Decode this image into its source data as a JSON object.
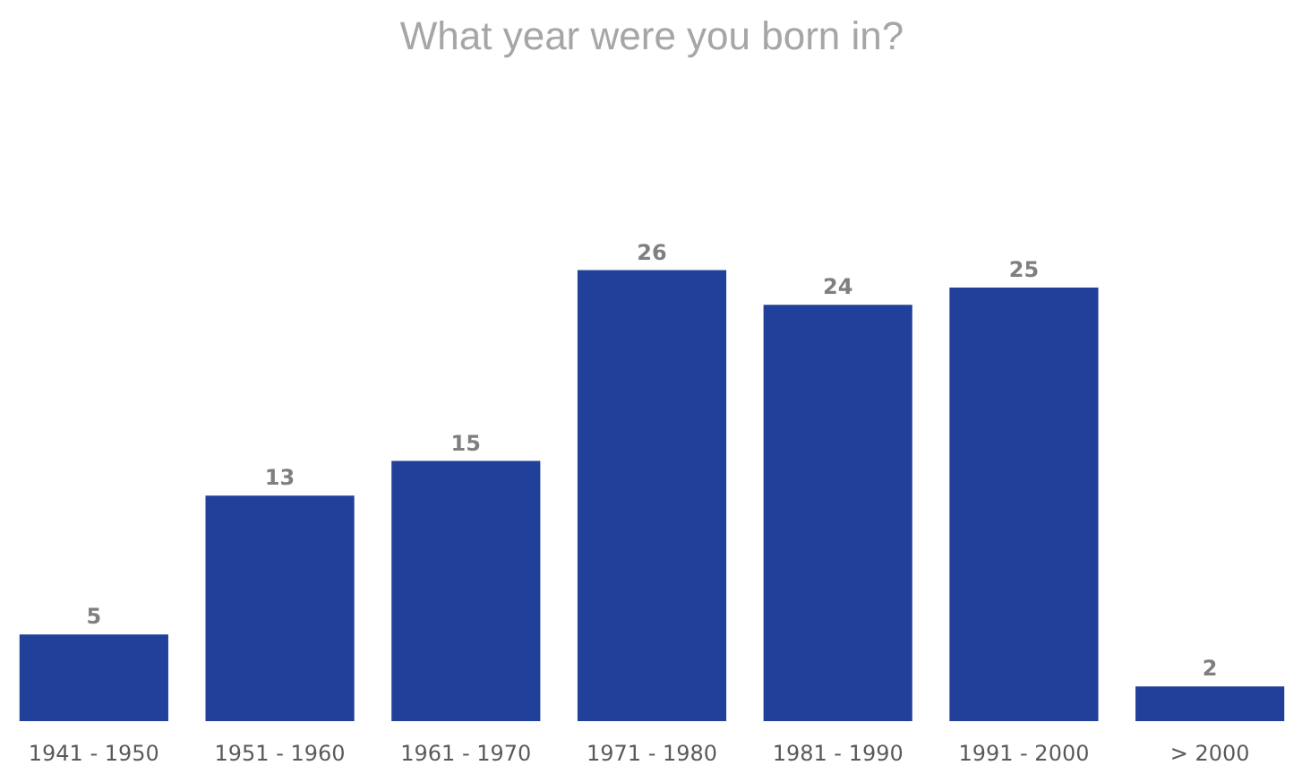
{
  "chart_data": {
    "type": "bar",
    "title": "What year were you born in?",
    "categories": [
      "1941 - 1950",
      "1951 - 1960",
      "1961 - 1970",
      "1971 - 1980",
      "1981 - 1990",
      "1991 - 2000",
      "> 2000"
    ],
    "values": [
      5,
      13,
      15,
      26,
      24,
      25,
      2
    ],
    "color": "#21409a",
    "data_labels": true
  }
}
